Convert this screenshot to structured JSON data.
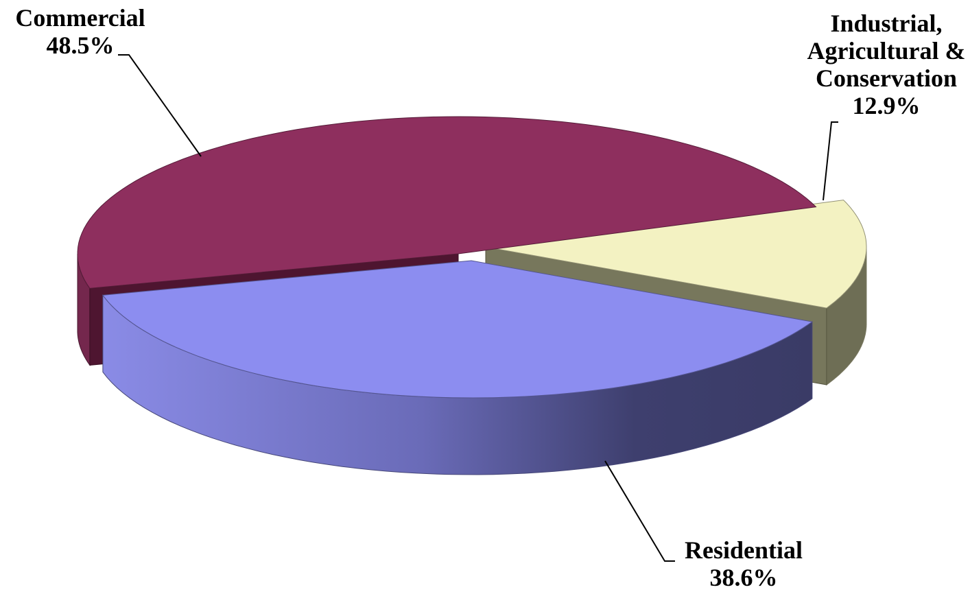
{
  "chart_data": {
    "type": "pie",
    "style": "3d-exploded",
    "slices": [
      {
        "name": "Commercial",
        "value": 48.5,
        "label": "48.5%",
        "color": "#8E2F5E"
      },
      {
        "name": "Industrial, Agricultural & Conservation",
        "value": 12.9,
        "label": "12.9%",
        "color": "#F3F2C2"
      },
      {
        "name": "Residential",
        "value": 38.6,
        "label": "38.6%",
        "color": "#8C8DF0"
      }
    ],
    "labels": {
      "commercial": {
        "lines": [
          "Commercial",
          "48.5%"
        ]
      },
      "industrial": {
        "lines": [
          "Industrial,",
          "Agricultural &",
          "Conservation",
          "12.9%"
        ]
      },
      "residential": {
        "lines": [
          "Residential",
          "38.6%"
        ]
      }
    },
    "legend": "none"
  }
}
